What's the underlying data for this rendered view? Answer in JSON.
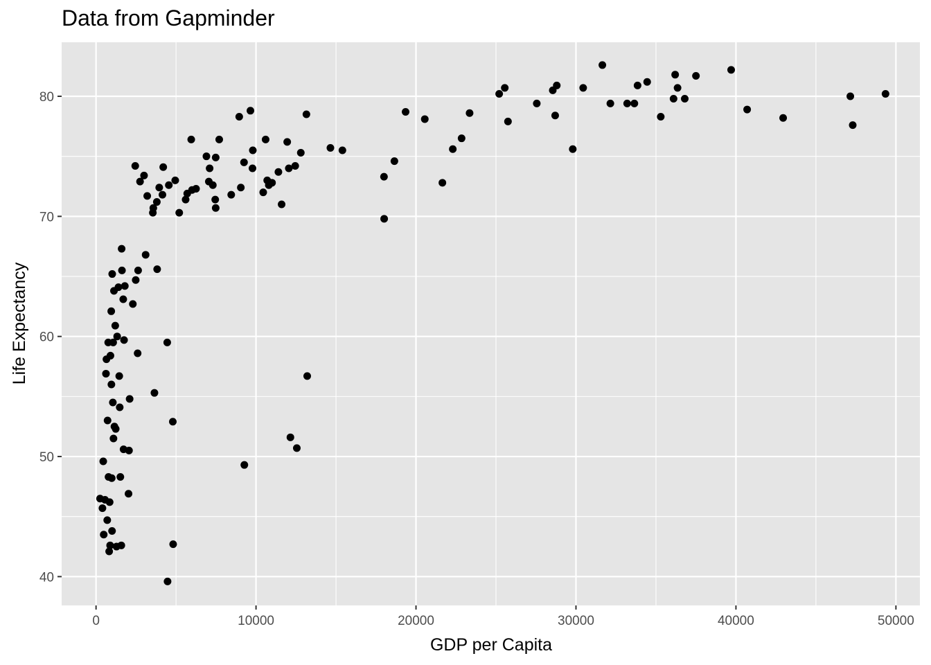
{
  "chart_data": {
    "type": "scatter",
    "title": "Data from Gapminder",
    "xlabel": "GDP per Capita",
    "ylabel": "Life Expectancy",
    "xlim": [
      -2150,
      51500
    ],
    "ylim": [
      37.6,
      84.5
    ],
    "x_ticks": [
      0,
      10000,
      20000,
      30000,
      40000,
      50000
    ],
    "y_ticks": [
      40,
      50,
      60,
      70,
      80
    ],
    "grid": true,
    "panel_background": "#e5e5e5",
    "grid_color": "#ffffff",
    "point_color": "#000000",
    "points": [
      {
        "x": 250,
        "y": 46.5
      },
      {
        "x": 400,
        "y": 45.7
      },
      {
        "x": 450,
        "y": 49.6
      },
      {
        "x": 480,
        "y": 43.5
      },
      {
        "x": 560,
        "y": 46.4
      },
      {
        "x": 620,
        "y": 56.9
      },
      {
        "x": 650,
        "y": 58.1
      },
      {
        "x": 700,
        "y": 44.7
      },
      {
        "x": 720,
        "y": 53.0
      },
      {
        "x": 760,
        "y": 59.5
      },
      {
        "x": 780,
        "y": 48.3
      },
      {
        "x": 820,
        "y": 42.1
      },
      {
        "x": 850,
        "y": 46.2
      },
      {
        "x": 880,
        "y": 42.6
      },
      {
        "x": 900,
        "y": 58.4
      },
      {
        "x": 950,
        "y": 62.1
      },
      {
        "x": 960,
        "y": 56.0
      },
      {
        "x": 980,
        "y": 48.2
      },
      {
        "x": 1000,
        "y": 43.8
      },
      {
        "x": 1010,
        "y": 65.2
      },
      {
        "x": 1050,
        "y": 54.5
      },
      {
        "x": 1070,
        "y": 59.5
      },
      {
        "x": 1090,
        "y": 51.5
      },
      {
        "x": 1120,
        "y": 63.8
      },
      {
        "x": 1150,
        "y": 52.5
      },
      {
        "x": 1200,
        "y": 60.9
      },
      {
        "x": 1230,
        "y": 52.3
      },
      {
        "x": 1280,
        "y": 42.5
      },
      {
        "x": 1320,
        "y": 60.0
      },
      {
        "x": 1400,
        "y": 64.1
      },
      {
        "x": 1450,
        "y": 56.7
      },
      {
        "x": 1480,
        "y": 54.1
      },
      {
        "x": 1520,
        "y": 48.3
      },
      {
        "x": 1580,
        "y": 42.6
      },
      {
        "x": 1600,
        "y": 67.3
      },
      {
        "x": 1620,
        "y": 65.5
      },
      {
        "x": 1700,
        "y": 63.1
      },
      {
        "x": 1720,
        "y": 50.6
      },
      {
        "x": 1750,
        "y": 59.7
      },
      {
        "x": 1800,
        "y": 64.2
      },
      {
        "x": 2030,
        "y": 46.9
      },
      {
        "x": 2060,
        "y": 50.5
      },
      {
        "x": 2100,
        "y": 54.8
      },
      {
        "x": 2300,
        "y": 62.7
      },
      {
        "x": 2450,
        "y": 74.2
      },
      {
        "x": 2480,
        "y": 64.7
      },
      {
        "x": 2600,
        "y": 58.6
      },
      {
        "x": 2630,
        "y": 65.5
      },
      {
        "x": 2750,
        "y": 72.9
      },
      {
        "x": 3000,
        "y": 73.4
      },
      {
        "x": 3100,
        "y": 66.8
      },
      {
        "x": 3200,
        "y": 71.7
      },
      {
        "x": 3550,
        "y": 70.3
      },
      {
        "x": 3580,
        "y": 70.7
      },
      {
        "x": 3650,
        "y": 55.3
      },
      {
        "x": 3800,
        "y": 71.2
      },
      {
        "x": 3820,
        "y": 65.6
      },
      {
        "x": 3950,
        "y": 72.4
      },
      {
        "x": 4150,
        "y": 71.8
      },
      {
        "x": 4200,
        "y": 74.1
      },
      {
        "x": 4450,
        "y": 59.5
      },
      {
        "x": 4470,
        "y": 39.6
      },
      {
        "x": 4550,
        "y": 72.6
      },
      {
        "x": 4800,
        "y": 52.9
      },
      {
        "x": 4820,
        "y": 42.7
      },
      {
        "x": 4950,
        "y": 73.0
      },
      {
        "x": 5200,
        "y": 70.3
      },
      {
        "x": 5600,
        "y": 71.4
      },
      {
        "x": 5700,
        "y": 71.9
      },
      {
        "x": 5950,
        "y": 76.4
      },
      {
        "x": 6000,
        "y": 72.2
      },
      {
        "x": 6250,
        "y": 72.3
      },
      {
        "x": 6900,
        "y": 75.0
      },
      {
        "x": 7050,
        "y": 72.9
      },
      {
        "x": 7100,
        "y": 74.0
      },
      {
        "x": 7300,
        "y": 72.6
      },
      {
        "x": 7450,
        "y": 71.4
      },
      {
        "x": 7480,
        "y": 70.7
      },
      {
        "x": 7480,
        "y": 74.9
      },
      {
        "x": 7700,
        "y": 76.4
      },
      {
        "x": 8450,
        "y": 71.8
      },
      {
        "x": 8950,
        "y": 78.3
      },
      {
        "x": 9050,
        "y": 72.4
      },
      {
        "x": 9250,
        "y": 74.5
      },
      {
        "x": 9270,
        "y": 49.3
      },
      {
        "x": 9650,
        "y": 78.8
      },
      {
        "x": 9780,
        "y": 74.0
      },
      {
        "x": 9800,
        "y": 75.5
      },
      {
        "x": 10450,
        "y": 72.0
      },
      {
        "x": 10600,
        "y": 76.4
      },
      {
        "x": 10700,
        "y": 73.0
      },
      {
        "x": 10800,
        "y": 72.6
      },
      {
        "x": 11000,
        "y": 72.8
      },
      {
        "x": 11400,
        "y": 73.7
      },
      {
        "x": 11600,
        "y": 71.0
      },
      {
        "x": 11950,
        "y": 76.2
      },
      {
        "x": 12050,
        "y": 74.0
      },
      {
        "x": 12150,
        "y": 51.6
      },
      {
        "x": 12450,
        "y": 74.2
      },
      {
        "x": 12550,
        "y": 50.7
      },
      {
        "x": 12800,
        "y": 75.3
      },
      {
        "x": 13150,
        "y": 78.5
      },
      {
        "x": 13200,
        "y": 56.7
      },
      {
        "x": 14650,
        "y": 75.7
      },
      {
        "x": 15400,
        "y": 75.5
      },
      {
        "x": 18000,
        "y": 73.3
      },
      {
        "x": 18010,
        "y": 69.8
      },
      {
        "x": 18650,
        "y": 74.6
      },
      {
        "x": 19350,
        "y": 78.7
      },
      {
        "x": 20550,
        "y": 78.1
      },
      {
        "x": 21650,
        "y": 72.8
      },
      {
        "x": 22300,
        "y": 75.6
      },
      {
        "x": 22850,
        "y": 76.5
      },
      {
        "x": 23350,
        "y": 78.6
      },
      {
        "x": 25200,
        "y": 80.2
      },
      {
        "x": 25550,
        "y": 80.7
      },
      {
        "x": 25750,
        "y": 77.9
      },
      {
        "x": 27550,
        "y": 79.4
      },
      {
        "x": 28550,
        "y": 80.5
      },
      {
        "x": 28700,
        "y": 78.4
      },
      {
        "x": 28800,
        "y": 80.9
      },
      {
        "x": 29800,
        "y": 75.6
      },
      {
        "x": 30450,
        "y": 80.7
      },
      {
        "x": 31650,
        "y": 82.6
      },
      {
        "x": 32150,
        "y": 79.4
      },
      {
        "x": 33200,
        "y": 79.4
      },
      {
        "x": 33650,
        "y": 79.4
      },
      {
        "x": 33850,
        "y": 80.9
      },
      {
        "x": 34450,
        "y": 81.2
      },
      {
        "x": 35300,
        "y": 78.3
      },
      {
        "x": 36100,
        "y": 79.8
      },
      {
        "x": 36200,
        "y": 81.8
      },
      {
        "x": 36350,
        "y": 80.7
      },
      {
        "x": 36800,
        "y": 79.8
      },
      {
        "x": 37500,
        "y": 81.7
      },
      {
        "x": 39700,
        "y": 82.2
      },
      {
        "x": 40700,
        "y": 78.9
      },
      {
        "x": 42950,
        "y": 78.2
      },
      {
        "x": 47150,
        "y": 80.0
      },
      {
        "x": 47300,
        "y": 77.6
      },
      {
        "x": 49350,
        "y": 80.2
      }
    ]
  }
}
